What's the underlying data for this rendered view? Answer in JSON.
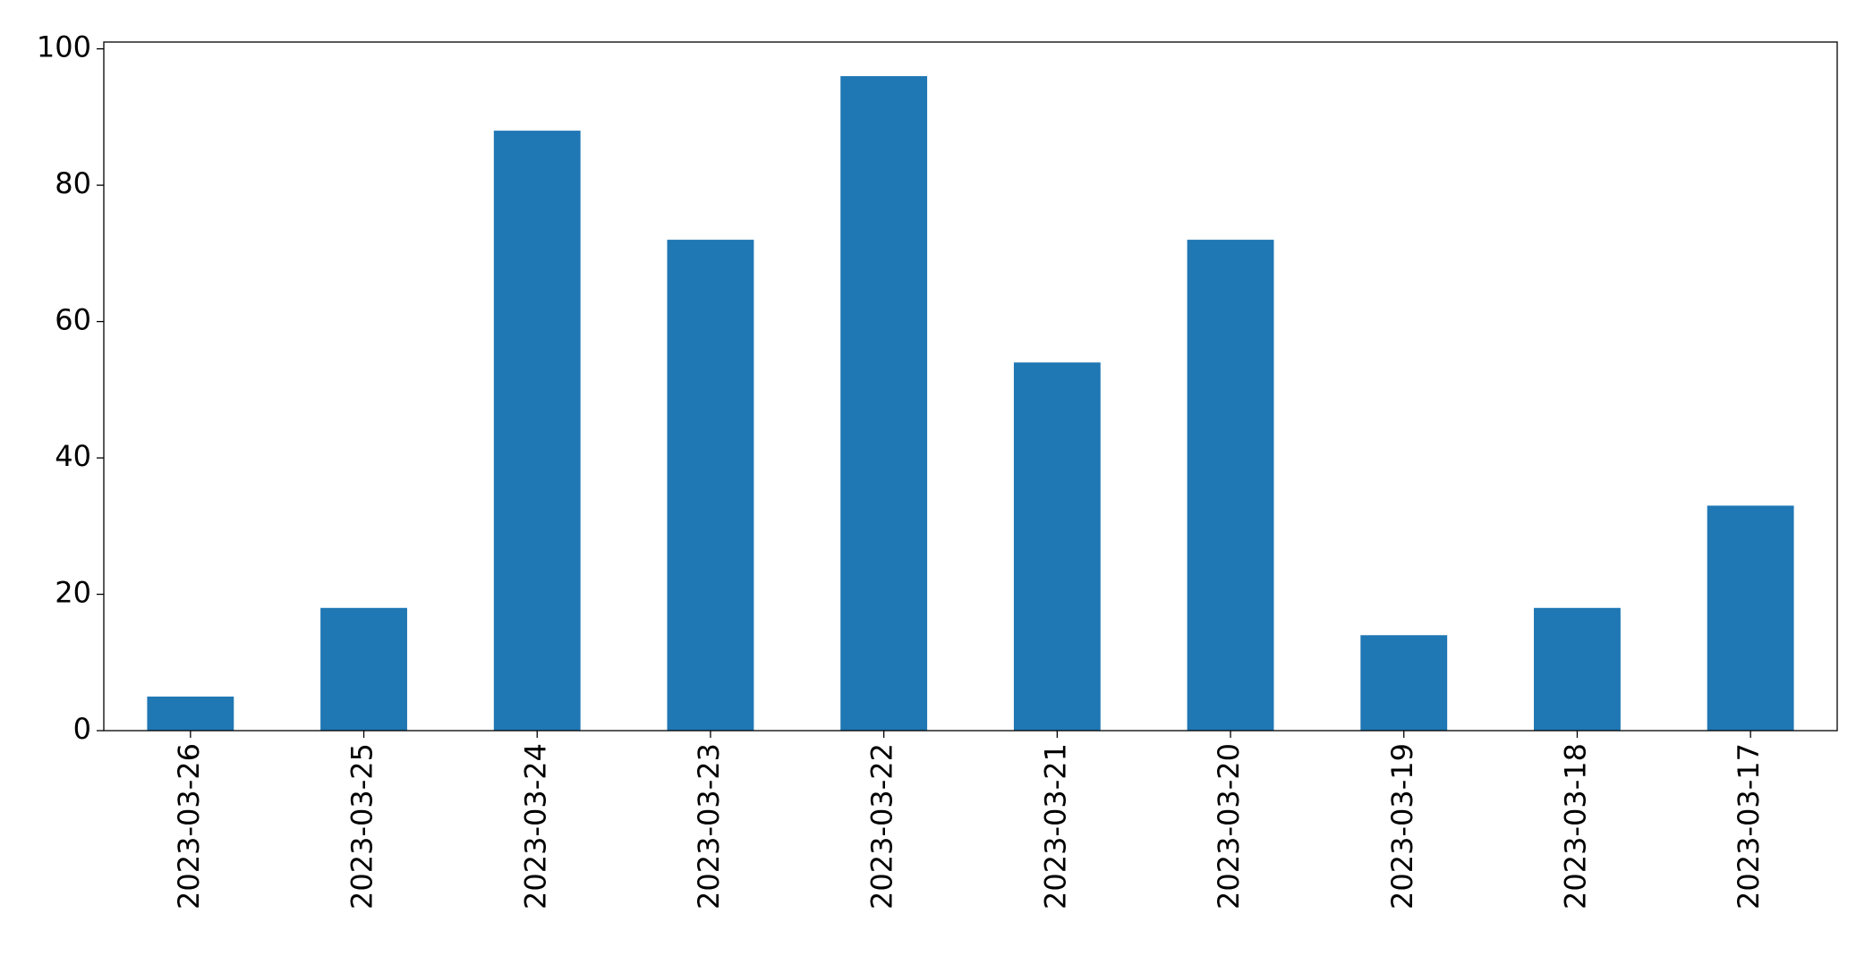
{
  "chart_data": {
    "type": "bar",
    "categories": [
      "2023-03-26",
      "2023-03-25",
      "2023-03-24",
      "2023-03-23",
      "2023-03-22",
      "2023-03-21",
      "2023-03-20",
      "2023-03-19",
      "2023-03-18",
      "2023-03-17"
    ],
    "values": [
      5,
      18,
      88,
      72,
      96,
      54,
      72,
      14,
      18,
      33
    ],
    "color": "#1f77b4",
    "ylim": [
      0,
      101
    ],
    "yticks": [
      0,
      20,
      40,
      60,
      80,
      100
    ],
    "grid": false
  }
}
